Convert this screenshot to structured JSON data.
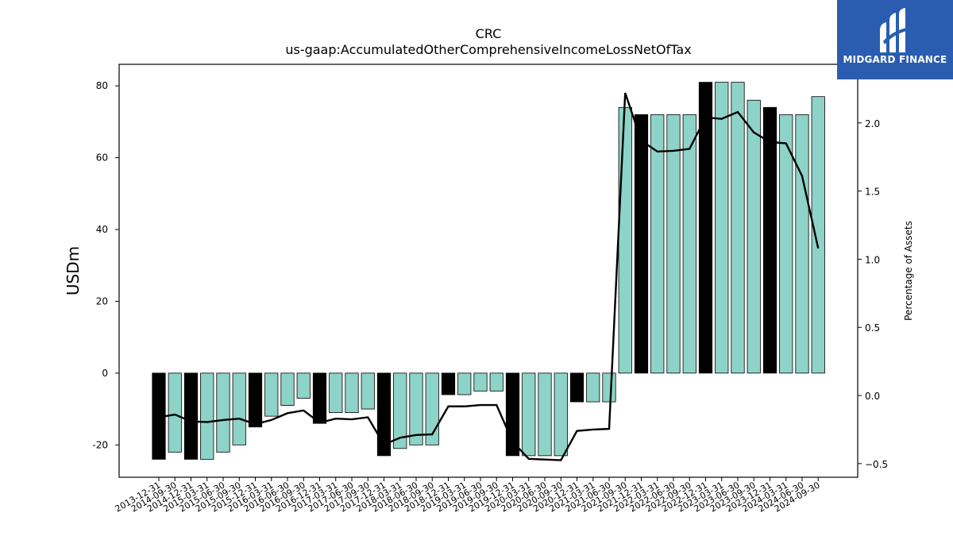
{
  "chart_data": {
    "type": "bar",
    "title": "CRC",
    "subtitle": "us-gaap:AccumulatedOtherComprehensiveIncomeLossNetOfTax",
    "ylabel": "USDm",
    "y2label": "Percentage of Assets",
    "ylim": [
      -29,
      86
    ],
    "y2lim": [
      -0.6,
      2.43
    ],
    "yticks": [
      -20,
      0,
      20,
      40,
      60,
      80
    ],
    "y2ticks": [
      -0.5,
      0.0,
      0.5,
      1.0,
      1.5,
      2.0
    ],
    "y2tick_labels": [
      "−0.5",
      "0.0",
      "0.5",
      "1.0",
      "1.5",
      "2.0"
    ],
    "colors": {
      "bar": "#8dd3c7",
      "highlight": "#000000",
      "line": "#000000"
    },
    "categories": [
      "2013-12-31",
      "2014-09-30",
      "2014-12-31",
      "2015-03-31",
      "2015-06-30",
      "2015-09-30",
      "2015-12-31",
      "2016-03-31",
      "2016-06-30",
      "2016-09-30",
      "2016-12-31",
      "2017-03-31",
      "2017-06-30",
      "2017-09-30",
      "2017-12-31",
      "2018-03-31",
      "2018-06-30",
      "2018-09-30",
      "2018-12-31",
      "2019-03-31",
      "2019-06-30",
      "2019-09-30",
      "2019-12-31",
      "2020-03-31",
      "2020-06-30",
      "2020-09-30",
      "2020-12-31",
      "2021-03-31",
      "2021-06-30",
      "2021-09-30",
      "2021-12-31",
      "2022-03-31",
      "2022-06-30",
      "2022-09-30",
      "2022-12-31",
      "2023-03-31",
      "2023-06-30",
      "2023-09-30",
      "2023-12-31",
      "2024-03-31",
      "2024-06-30",
      "2024-09-30"
    ],
    "series": [
      {
        "kind": "bar",
        "values": [
          -24,
          -22,
          -24,
          -24,
          -22,
          -20,
          -15,
          -12,
          -9,
          -7,
          -14,
          -11,
          -11,
          -10,
          -23,
          -21,
          -20,
          -20,
          -6,
          -6,
          -5,
          -5,
          -23,
          -23,
          -23,
          -23,
          -8,
          -8,
          -8,
          74,
          72,
          72,
          72,
          72,
          81,
          81,
          81,
          76,
          74,
          72,
          72,
          77
        ],
        "highlight": [
          true,
          false,
          true,
          false,
          false,
          false,
          true,
          false,
          false,
          false,
          true,
          false,
          false,
          false,
          true,
          false,
          false,
          false,
          true,
          false,
          false,
          false,
          true,
          false,
          false,
          false,
          true,
          false,
          false,
          false,
          true,
          false,
          false,
          false,
          true,
          false,
          false,
          false,
          true,
          false,
          false,
          false
        ]
      },
      {
        "kind": "line",
        "axis": "right",
        "values": [
          -0.16,
          -0.14,
          -0.19,
          -0.195,
          -0.18,
          -0.17,
          -0.21,
          -0.18,
          -0.13,
          -0.11,
          -0.2,
          -0.17,
          -0.175,
          -0.16,
          -0.36,
          -0.31,
          -0.29,
          -0.285,
          -0.08,
          -0.08,
          -0.07,
          -0.07,
          -0.34,
          -0.465,
          -0.47,
          -0.475,
          -0.26,
          -0.25,
          -0.245,
          2.22,
          1.87,
          1.79,
          1.795,
          1.81,
          2.04,
          2.03,
          2.08,
          1.93,
          1.86,
          1.85,
          1.61,
          1.08
        ]
      }
    ]
  },
  "logo": {
    "brand_text": "MIDGARD FINANCE",
    "bg_color": "#2a5db0"
  }
}
